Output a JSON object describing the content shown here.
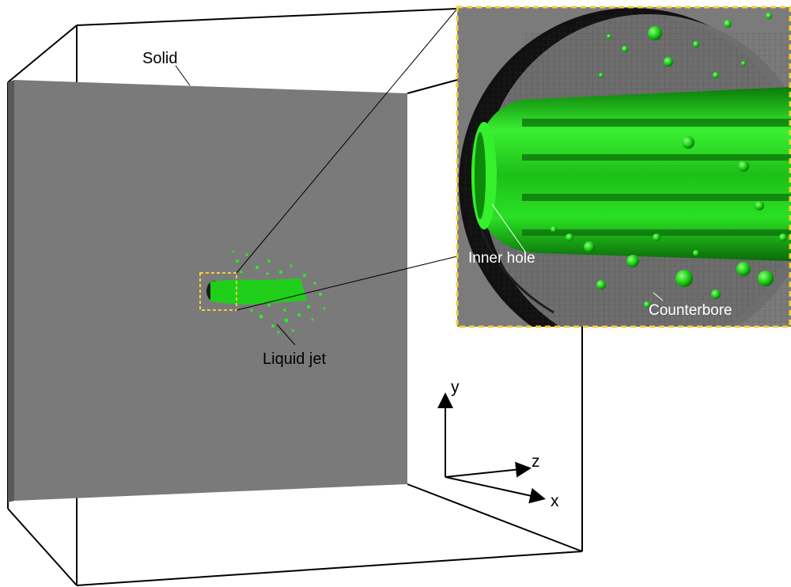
{
  "labels": {
    "solid": "Solid",
    "liquid_jet": "Liquid jet",
    "inner_hole": "Inner hole",
    "counterbore": "Counterbore"
  },
  "axes": {
    "x": "x",
    "y": "y",
    "z": "z"
  },
  "colors": {
    "solid_plate": "#7a7a7a",
    "liquid": "#22e01e",
    "highlight_box": "#f5cf3a",
    "outline": "#000000"
  }
}
